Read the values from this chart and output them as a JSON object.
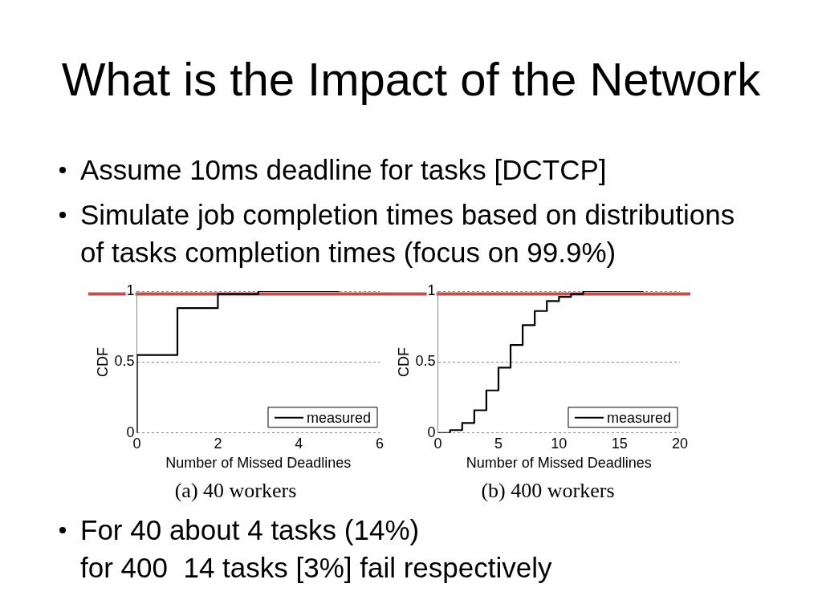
{
  "chart_data": [
    {
      "type": "other",
      "title": "What is the Impact of the Network",
      "annotations": [
        "Assume 10ms deadline for tasks [DCTCP]",
        "Simulate job completion times based on distributions of tasks completion times (focus on 99.9%)"
      ]
    },
    {
      "type": "step",
      "xlabel": "Number of Missed Deadlines",
      "ylabel": "CDF",
      "x": [
        0,
        0,
        1,
        2,
        3,
        5
      ],
      "series": [
        {
          "name": "measured",
          "color": "#000000",
          "values": [
            0,
            0.55,
            0.88,
            0.98,
            1,
            1
          ]
        }
      ],
      "xlim": [
        0,
        6
      ],
      "xticks": [
        0,
        2,
        4,
        6
      ],
      "ylim": [
        0,
        1
      ],
      "yticks": [
        0,
        0.5,
        1
      ],
      "grid": "y",
      "legend": "bottom right",
      "ref_lines": [
        {
          "axis": "y",
          "value": 0.98,
          "color": "#c0504d"
        }
      ],
      "annotations": [
        "(a) 40 workers"
      ]
    },
    {
      "type": "step",
      "xlabel": "Number of Missed Deadlines",
      "ylabel": "CDF",
      "x": [
        0,
        1,
        2,
        3,
        4,
        5,
        6,
        7,
        8,
        9,
        10,
        11,
        12,
        17
      ],
      "series": [
        {
          "name": "measured",
          "color": "#000000",
          "values": [
            0,
            0.02,
            0.07,
            0.16,
            0.3,
            0.46,
            0.62,
            0.76,
            0.86,
            0.93,
            0.96,
            0.98,
            1,
            1
          ]
        }
      ],
      "xlim": [
        0,
        20
      ],
      "xticks": [
        0,
        5,
        10,
        15,
        20
      ],
      "ylim": [
        0,
        1
      ],
      "yticks": [
        0,
        0.5,
        1
      ],
      "grid": "y",
      "legend": "bottom right",
      "ref_lines": [
        {
          "axis": "y",
          "value": 0.98,
          "color": "#c0504d"
        }
      ],
      "annotations": [
        "(b) 400 workers"
      ]
    },
    {
      "type": "other",
      "annotations": [
        "For 40 about 4 tasks (14%)\nfor 400  14 tasks [3%] fail respectively"
      ]
    }
  ]
}
